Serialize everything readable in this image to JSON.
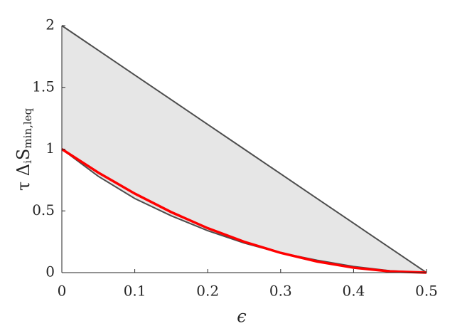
{
  "chart_data": {
    "type": "line",
    "x": [
      0,
      0.05,
      0.1,
      0.15,
      0.2,
      0.25,
      0.3,
      0.35,
      0.4,
      0.45,
      0.5
    ],
    "series": [
      {
        "color": "#4d4d4d",
        "values": [
          2,
          1.8,
          1.6,
          1.4,
          1.2,
          1.0,
          0.8,
          0.6,
          0.4,
          0.2,
          0
        ]
      },
      {
        "color": "#4d4d4d",
        "values": [
          1,
          0.78,
          0.6,
          0.46,
          0.34,
          0.24,
          0.16,
          0.1,
          0.05,
          0.015,
          0
        ]
      },
      {
        "color": "#ff0000",
        "values": [
          1,
          0.81,
          0.64,
          0.49,
          0.36,
          0.25,
          0.16,
          0.09,
          0.04,
          0.01,
          0
        ]
      }
    ],
    "fill_between": [
      0,
      1
    ],
    "fill_color": "#e6e6e6",
    "xlabel": "ϵ",
    "ylabel": [
      "τ Δ",
      "i",
      "S",
      "min,leq"
    ],
    "xlim": [
      0,
      0.5
    ],
    "ylim": [
      0,
      2
    ],
    "xticks": [
      0,
      0.1,
      0.2,
      0.3,
      0.4,
      0.5
    ],
    "yticks": [
      0,
      0.5,
      1,
      1.5,
      2
    ]
  }
}
